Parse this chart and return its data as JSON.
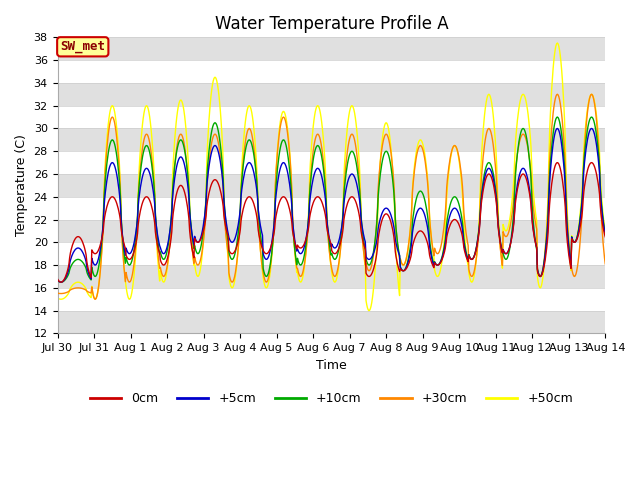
{
  "title": "Water Temperature Profile A",
  "xlabel": "Time",
  "ylabel": "Temperature (C)",
  "ylim": [
    12,
    38
  ],
  "yticks": [
    12,
    14,
    16,
    18,
    20,
    22,
    24,
    26,
    28,
    30,
    32,
    34,
    36,
    38
  ],
  "xtick_labels": [
    "Jul 30",
    "Jul 31",
    "Aug 1",
    "Aug 2",
    "Aug 3",
    "Aug 4",
    "Aug 5",
    "Aug 6",
    "Aug 7",
    "Aug 8",
    "Aug 9",
    "Aug 10",
    "Aug 11",
    "Aug 12",
    "Aug 13",
    "Aug 14"
  ],
  "series_colors": [
    "#cc0000",
    "#0000cc",
    "#00aa00",
    "#ff8800",
    "#ffff00"
  ],
  "series_labels": [
    "0cm",
    "+5cm",
    "+10cm",
    "+30cm",
    "+50cm"
  ],
  "line_width": 1.0,
  "background_color": "#ffffff",
  "plot_bg_color": "#ffffff",
  "grid_stripe_color": "#e0e0e0",
  "annotation_text": "SW_met",
  "annotation_bg": "#ffff99",
  "annotation_border": "#cc0000",
  "title_fontsize": 12,
  "label_fontsize": 9,
  "tick_fontsize": 8,
  "legend_fontsize": 9,
  "red_peaks": [
    20.5,
    24,
    24,
    25,
    25.5,
    24,
    24,
    24,
    24,
    22.5,
    21,
    22,
    26,
    26,
    27,
    27
  ],
  "red_troughs": [
    16.5,
    19,
    18.5,
    18,
    20,
    19,
    19,
    19.5,
    19,
    17,
    17.5,
    18,
    18.5,
    19,
    17,
    20
  ],
  "blue_peaks": [
    19.5,
    27,
    26.5,
    27.5,
    28.5,
    27,
    27,
    26.5,
    26,
    23,
    23,
    23,
    26.5,
    26.5,
    30,
    30
  ],
  "blue_troughs": [
    16.5,
    18,
    19,
    19,
    20,
    20,
    18.5,
    19,
    19.5,
    18.5,
    17.5,
    18,
    18.5,
    19,
    17,
    20
  ],
  "green_peaks": [
    18.5,
    29,
    28.5,
    29,
    30.5,
    29,
    29,
    28.5,
    28,
    28,
    24.5,
    24,
    27,
    30,
    31,
    31
  ],
  "green_troughs": [
    16.5,
    17,
    18,
    18.5,
    19,
    18.5,
    17,
    18,
    18.5,
    18,
    17.5,
    18,
    18.5,
    18.5,
    17,
    20
  ],
  "orange_peaks": [
    16,
    31,
    29.5,
    29.5,
    29.5,
    30,
    31,
    29.5,
    29.5,
    29.5,
    28.5,
    28.5,
    30,
    29.5,
    33,
    33
  ],
  "orange_troughs": [
    15.5,
    15,
    16.5,
    17,
    18,
    16.5,
    16.5,
    17,
    17,
    17.5,
    18,
    19,
    17,
    20.5,
    17,
    17
  ],
  "yellow_peaks": [
    16.5,
    32,
    32,
    32.5,
    34.5,
    32,
    31.5,
    32,
    32,
    30.5,
    29,
    28.5,
    33,
    33,
    37.5,
    33
  ],
  "yellow_troughs": [
    15,
    15,
    15,
    16.5,
    17,
    16,
    16,
    16.5,
    16.5,
    14,
    18,
    17,
    16.5,
    21,
    16,
    20
  ]
}
